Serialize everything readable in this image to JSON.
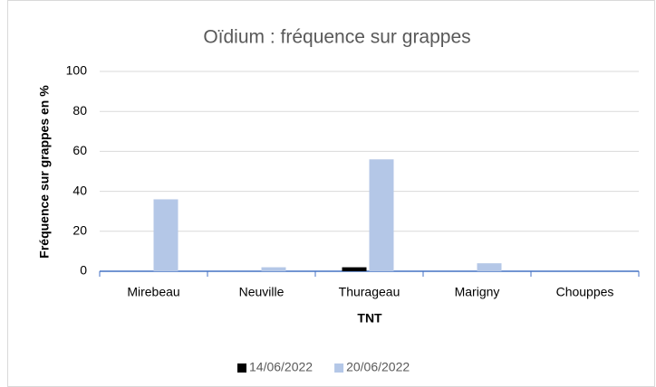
{
  "chart_data": {
    "type": "bar",
    "title": "Oïdium : fréquence sur grappes",
    "x_label": "TNT",
    "y_label": "Fréquence sur grappes en %",
    "categories": [
      "Mirebeau",
      "Neuville",
      "Thurageau",
      "Marigny",
      "Chouppes"
    ],
    "series": [
      {
        "name": "14/06/2022",
        "color": "#000000",
        "values": [
          0,
          0,
          2,
          0,
          0
        ]
      },
      {
        "name": "20/06/2022",
        "color": "#b4c7e7",
        "values": [
          36,
          2,
          56,
          4,
          0
        ]
      }
    ],
    "ylim": [
      0,
      100
    ],
    "yticks": [
      0,
      20,
      40,
      60,
      80,
      100
    ],
    "grid": true,
    "legend": "bottom"
  }
}
